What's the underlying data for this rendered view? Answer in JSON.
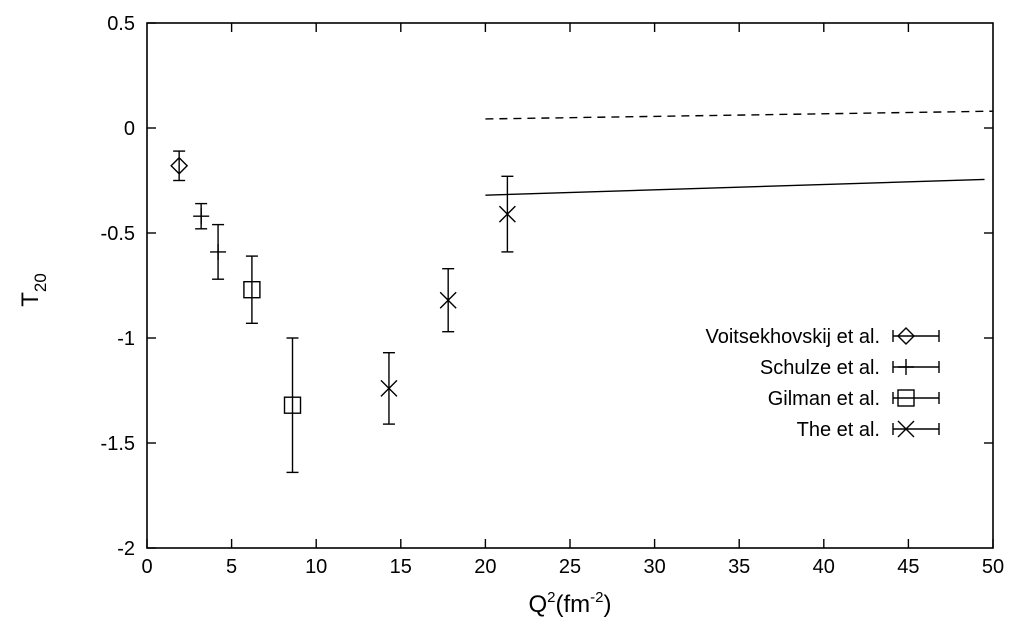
{
  "chart_data": {
    "type": "scatter",
    "title": "",
    "xlabel": {
      "base": "Q",
      "sup1": "2",
      "mid": "(fm",
      "sup2": "-2",
      "end": ")"
    },
    "ylabel": {
      "base": "T",
      "sub": "20"
    },
    "xlim": [
      0,
      50
    ],
    "ylim": [
      -2,
      0.5
    ],
    "xticks": [
      0,
      5,
      10,
      15,
      20,
      25,
      30,
      35,
      40,
      45,
      50
    ],
    "yticks": [
      -2,
      -1.5,
      -1,
      -0.5,
      0,
      0.5
    ],
    "xtick_labels": [
      "0",
      "5",
      "10",
      "15",
      "20",
      "25",
      "30",
      "35",
      "40",
      "45",
      "50"
    ],
    "ytick_labels": [
      "-2",
      "-1.5",
      "-1",
      "-0.5",
      "0",
      "0.5"
    ],
    "grid": false,
    "legend_position": "right",
    "series": [
      {
        "name": "Voitsekhovskij et al.",
        "marker": "diamond",
        "points": [
          {
            "x": 1.9,
            "y": -0.18,
            "ylo": -0.25,
            "yhi": -0.11
          }
        ]
      },
      {
        "name": "Schulze et al.",
        "marker": "plus",
        "points": [
          {
            "x": 3.2,
            "y": -0.42,
            "ylo": -0.48,
            "yhi": -0.36
          },
          {
            "x": 4.2,
            "y": -0.59,
            "ylo": -0.72,
            "yhi": -0.46
          }
        ]
      },
      {
        "name": "Gilman et al.",
        "marker": "square",
        "points": [
          {
            "x": 6.2,
            "y": -0.77,
            "ylo": -0.93,
            "yhi": -0.61
          },
          {
            "x": 8.6,
            "y": -1.32,
            "ylo": -1.64,
            "yhi": -1.0
          }
        ]
      },
      {
        "name": "The et al.",
        "marker": "cross",
        "points": [
          {
            "x": 14.3,
            "y": -1.24,
            "ylo": -1.41,
            "yhi": -1.07
          },
          {
            "x": 17.8,
            "y": -0.82,
            "ylo": -0.97,
            "yhi": -0.67
          },
          {
            "x": 21.3,
            "y": -0.41,
            "ylo": -0.59,
            "yhi": -0.23
          }
        ]
      }
    ],
    "curves": [
      {
        "style": "solid",
        "points": [
          [
            20,
            -0.32
          ],
          [
            49.5,
            -0.245
          ]
        ]
      },
      {
        "style": "dashed",
        "points": [
          [
            20,
            0.043
          ],
          [
            50,
            0.08
          ]
        ]
      }
    ]
  }
}
